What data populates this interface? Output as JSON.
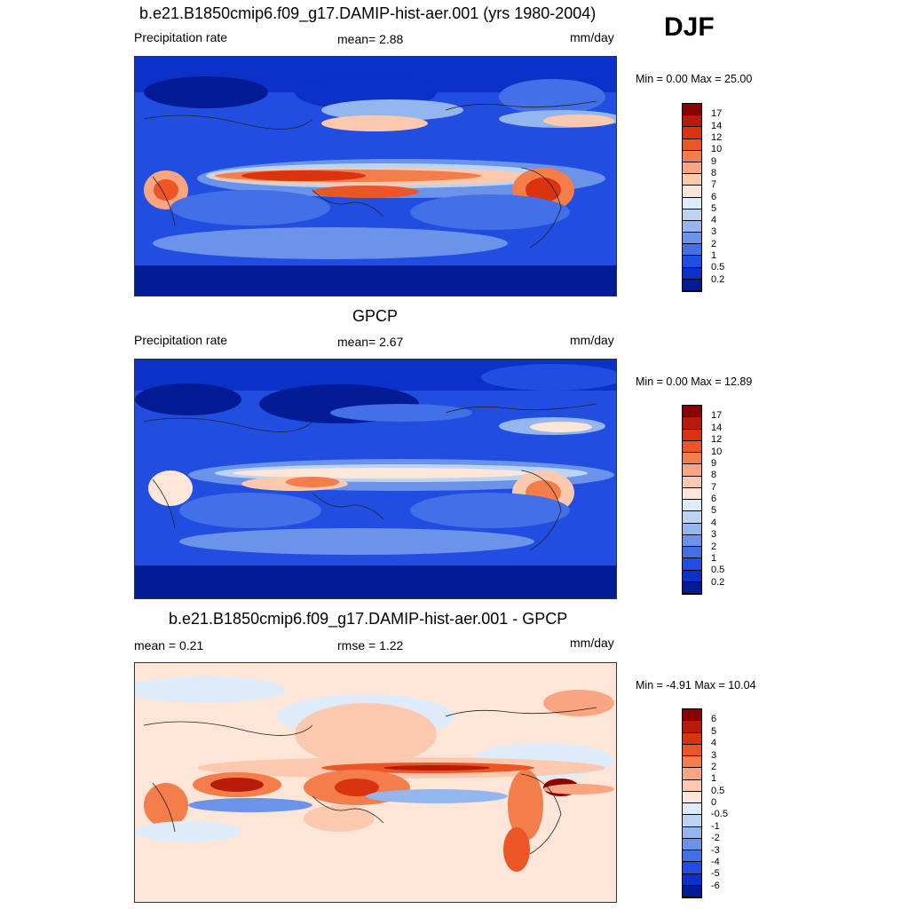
{
  "season": "DJF",
  "panels": [
    {
      "title": "b.e21.B1850cmip6.f09_g17.DAMIP-hist-aer.001 (yrs 1980-2004)",
      "left_label": "Precipitation rate",
      "center_label": "mean=   2.88",
      "right_label": "mm/day",
      "minmax": "Min =   0.00 Max =  25.00",
      "ticks": [
        "17",
        "14",
        "12",
        "10",
        "9",
        "8",
        "7",
        "6",
        "5",
        "4",
        "3",
        "2",
        "1",
        "0.5",
        "0.2"
      ],
      "colors": [
        "#8b0000",
        "#b81b0a",
        "#d9340f",
        "#ec5525",
        "#f47d4c",
        "#f9a582",
        "#fdc9ae",
        "#fde6d8",
        "#deebfa",
        "#bcd4f4",
        "#94b6ee",
        "#6b93ea",
        "#4370e6",
        "#214ee0",
        "#0b31c8",
        "#041b96"
      ]
    },
    {
      "title": "GPCP",
      "left_label": "Precipitation rate",
      "center_label": "mean=   2.67",
      "right_label": "mm/day",
      "minmax": "Min =   0.00 Max =  12.89",
      "ticks": [
        "17",
        "14",
        "12",
        "10",
        "9",
        "8",
        "7",
        "6",
        "5",
        "4",
        "3",
        "2",
        "1",
        "0.5",
        "0.2"
      ],
      "colors": [
        "#8b0000",
        "#b81b0a",
        "#d9340f",
        "#ec5525",
        "#f47d4c",
        "#f9a582",
        "#fdc9ae",
        "#fde6d8",
        "#deebfa",
        "#bcd4f4",
        "#94b6ee",
        "#6b93ea",
        "#4370e6",
        "#214ee0",
        "#0b31c8",
        "#041b96"
      ]
    },
    {
      "title": "b.e21.B1850cmip6.f09_g17.DAMIP-hist-aer.001 - GPCP",
      "left_label": "mean =   0.21",
      "center_label": "rmse =   1.22",
      "right_label": "mm/day",
      "minmax": "Min =  -4.91 Max =  10.04",
      "ticks": [
        "6",
        "5",
        "4",
        "3",
        "2",
        "1",
        "0.5",
        "0",
        "-0.5",
        "-1",
        "-2",
        "-3",
        "-4",
        "-5",
        "-6"
      ],
      "colors": [
        "#8b0000",
        "#b81b0a",
        "#d9340f",
        "#ec5525",
        "#f47d4c",
        "#f9a582",
        "#fdc9ae",
        "#fde6d8",
        "#deebfa",
        "#bcd4f4",
        "#94b6ee",
        "#6b93ea",
        "#4370e6",
        "#214ee0",
        "#0b31c8",
        "#041b96"
      ]
    }
  ]
}
